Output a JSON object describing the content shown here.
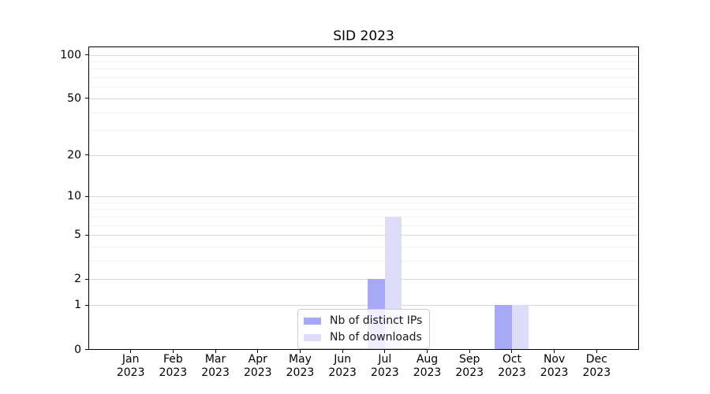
{
  "title": "SID 2023",
  "chart_data": {
    "type": "bar",
    "title": "SID 2023",
    "categories": [
      "Jan",
      "Feb",
      "Mar",
      "Apr",
      "May",
      "Jun",
      "Jul",
      "Aug",
      "Sep",
      "Oct",
      "Nov",
      "Dec"
    ],
    "category_year": "2023",
    "series": [
      {
        "name": "Nb of distinct IPs",
        "color": "#a8a8f8",
        "values": [
          0,
          0,
          0,
          0,
          0,
          0,
          2,
          0,
          0,
          1,
          0,
          0
        ]
      },
      {
        "name": "Nb of downloads",
        "color": "#dcdcf8",
        "values": [
          0,
          0,
          0,
          0,
          0,
          0,
          7,
          0,
          0,
          1,
          0,
          0
        ]
      }
    ],
    "y_ticks": [
      0,
      1,
      2,
      5,
      10,
      20,
      50,
      100
    ],
    "scale": "log1p",
    "ylim": [
      0,
      112
    ],
    "xlabel": "",
    "ylabel": "",
    "grid": true,
    "legend_position": "lower center",
    "colors": {
      "major_grid": "#d9d9d9",
      "minor_grid": "#f0f0f0",
      "axis": "#000000"
    }
  }
}
